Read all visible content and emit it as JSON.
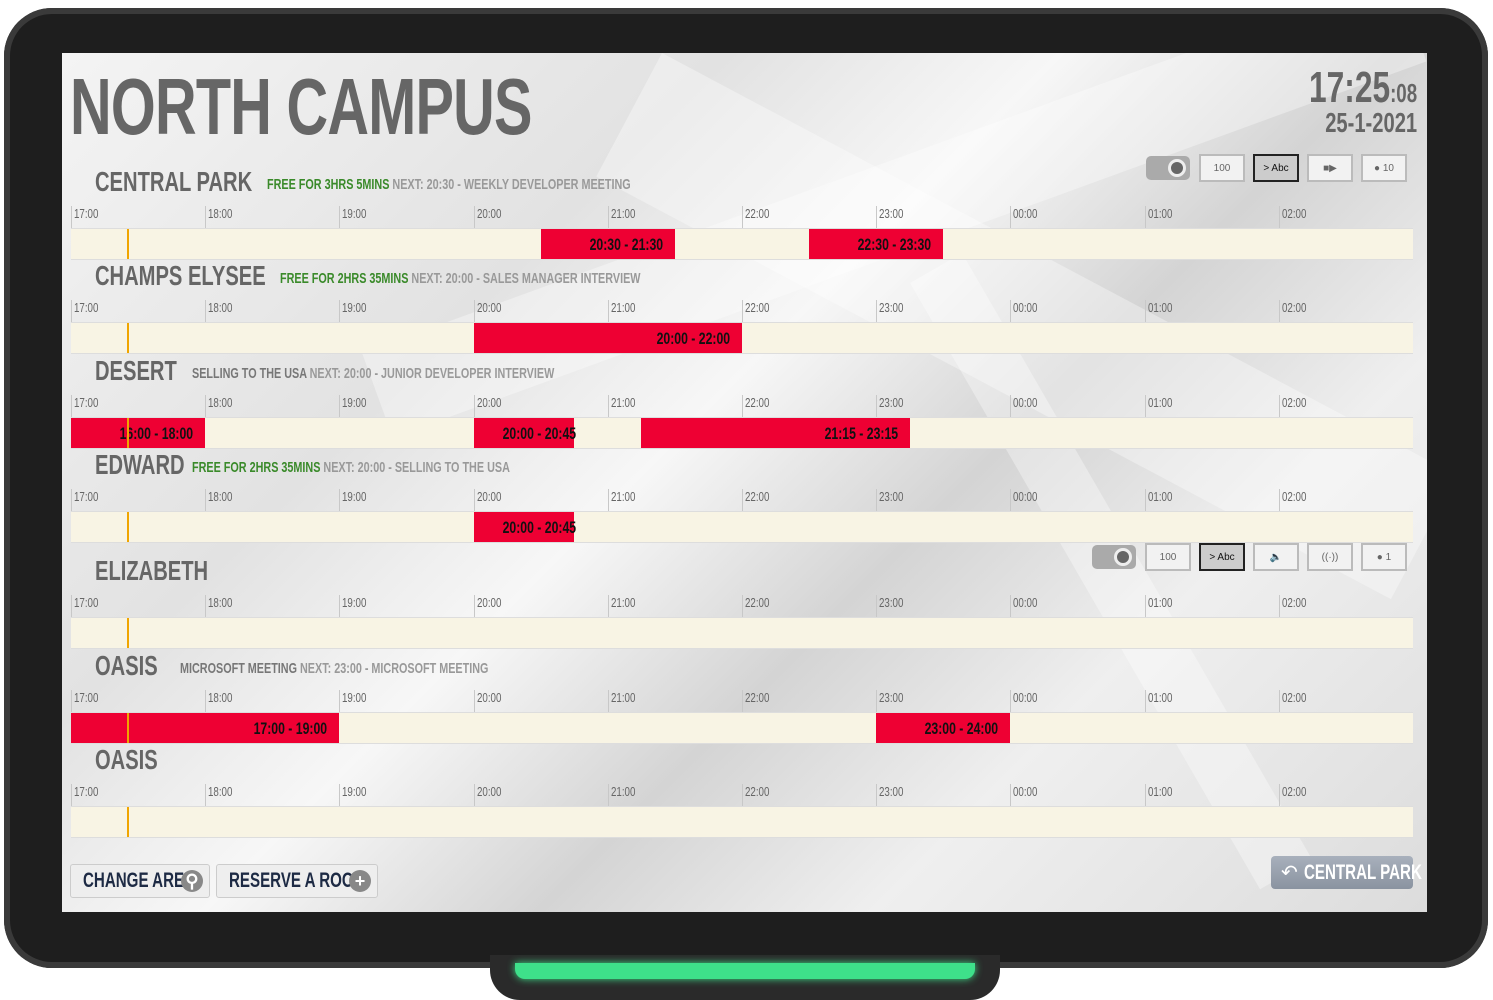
{
  "title": "NORTH CAMPUS",
  "clock": {
    "time": "17:25",
    "seconds": ":08",
    "date": "25-1-2021"
  },
  "timeline": {
    "start_hour": 17,
    "hours": [
      "17:00",
      "18:00",
      "19:00",
      "20:00",
      "21:00",
      "22:00",
      "23:00",
      "00:00",
      "01:00",
      "02:00"
    ],
    "now": "17:25"
  },
  "colors": {
    "busy": "#ee0033",
    "free_text": "#3a8a2a",
    "track": "#f8f4e4",
    "now_line": "#f0a500",
    "led": "#3ee08a"
  },
  "rooms": [
    {
      "name": "CENTRAL PARK",
      "status": "FREE FOR 3HRS 5MINS",
      "status_free": true,
      "next": "NEXT: 20:30 - WEEKLY DEVELOPER MEETING",
      "bookings": [
        {
          "label": "20:30 - 21:30",
          "start": 20.5,
          "end": 21.5
        },
        {
          "label": "22:30 - 23:30",
          "start": 22.5,
          "end": 23.5
        }
      ],
      "amenities": [
        "projector-icon",
        "whiteboard-icon",
        "display-icon",
        "video-camera-icon",
        "capacity-icon"
      ],
      "capacity": "10"
    },
    {
      "name": "CHAMPS ELYSEE",
      "status": "FREE FOR 2HRS 35MINS",
      "status_free": true,
      "next": "NEXT: 20:00 - SALES MANAGER INTERVIEW",
      "bookings": [
        {
          "label": "20:00 - 22:00",
          "start": 20,
          "end": 22
        }
      ]
    },
    {
      "name": "DESERT",
      "status": "SELLING TO THE USA",
      "status_free": false,
      "next": "NEXT: 20:00 - JUNIOR DEVELOPER INTERVIEW",
      "bookings": [
        {
          "label": "16:00 - 18:00",
          "start": 17,
          "end": 18
        },
        {
          "label": "20:00 - 20:45",
          "start": 20,
          "end": 20.75
        },
        {
          "label": "21:15 - 23:15",
          "start": 21.25,
          "end": 23.25
        }
      ]
    },
    {
      "name": "EDWARD",
      "status": "FREE FOR 2HRS 35MINS",
      "status_free": true,
      "next": "NEXT: 20:00 - SELLING TO THE USA",
      "bookings": [
        {
          "label": "20:00 - 20:45",
          "start": 20,
          "end": 20.75
        }
      ]
    },
    {
      "name": "ELIZABETH",
      "status": "",
      "status_free": true,
      "next": "",
      "bookings": [],
      "amenities": [
        "projector-icon",
        "whiteboard-icon",
        "display-icon",
        "speaker-icon",
        "wifi-icon",
        "capacity-icon"
      ],
      "capacity": "1"
    },
    {
      "name": "OASIS",
      "status": "MICROSOFT MEETING",
      "status_free": false,
      "next": "NEXT: 23:00 - MICROSOFT MEETING",
      "bookings": [
        {
          "label": "17:00 - 19:00",
          "start": 17,
          "end": 19
        },
        {
          "label": "23:00 - 24:00",
          "start": 23,
          "end": 24
        }
      ]
    },
    {
      "name": "OASIS",
      "status": "",
      "status_free": true,
      "next": "",
      "bookings": []
    }
  ],
  "buttons": {
    "change_area": "CHANGE AREA",
    "reserve": "RESERVE A ROOM",
    "back": "CENTRAL PARK"
  }
}
